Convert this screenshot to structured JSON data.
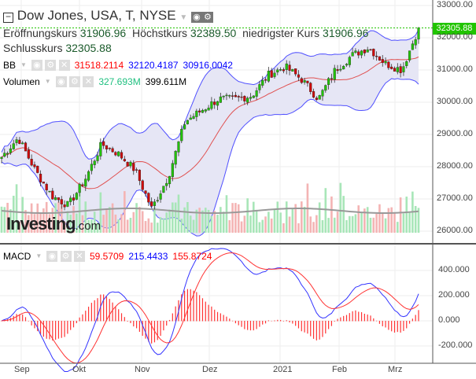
{
  "header": {
    "title": "Dow Jones, USA, T, NYSE",
    "open_label": "Eröffnungskurs",
    "open": "31906.96",
    "high_label": "Höchstkurs",
    "high": "32389.50",
    "low_label": "niedrigster Kurs",
    "low": "31906.96",
    "close_label": "Schlusskurs",
    "close": "32305.88"
  },
  "bb": {
    "label": "BB",
    "mid": "31518.2114",
    "upper": "32120.4187",
    "lower": "30916.0042"
  },
  "volume": {
    "label": "Volumen",
    "value": "327.693M",
    "avg": "399.611M"
  },
  "macd": {
    "label": "MACD",
    "hist": "59.5709",
    "macd": "215.4433",
    "signal": "155.8724"
  },
  "price_tag": "32305.88",
  "logo": {
    "main": "Investing",
    "suffix": ".com"
  },
  "price_axis": [
    "33000.00",
    "32000.00",
    "31000.00",
    "30000.00",
    "29000.00",
    "28000.00",
    "27000.00",
    "26000.00"
  ],
  "macd_axis": [
    "400.000",
    "200.000",
    "0.000",
    "-200.000"
  ],
  "time_axis": [
    "Sep",
    "Okt",
    "Nov",
    "Dez",
    "2021",
    "Feb",
    "Mrz"
  ],
  "colors": {
    "up": "#21c400",
    "down": "#d00000",
    "bb": "#5050ff",
    "mid": "#e05050",
    "bbfill": "#e6e6f5",
    "macd": "#3333ff",
    "signal": "#ff3333"
  },
  "chart_data": {
    "type": "candlestick",
    "price_keypoints": [
      28300,
      28900,
      27900,
      27100,
      26800,
      27600,
      28700,
      28400,
      27900,
      26700,
      27700,
      29400,
      29750,
      30100,
      30100,
      30200,
      30850,
      31100,
      30700,
      30100,
      31000,
      31450,
      31700,
      31200,
      31000,
      32305.88
    ]
  }
}
